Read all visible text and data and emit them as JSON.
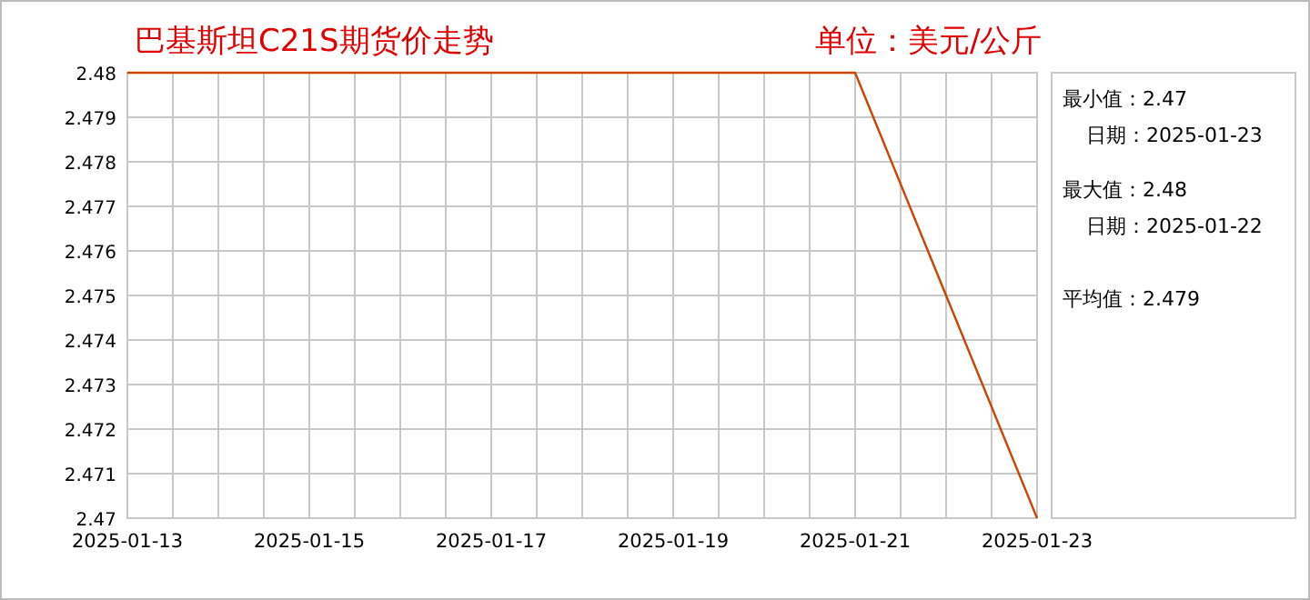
{
  "chart_data": {
    "type": "line",
    "title": "巴基斯坦C21S期货价走势",
    "subtitle": "单位：美元/公斤",
    "x": [
      "2025-01-13",
      "2025-01-14",
      "2025-01-15",
      "2025-01-16",
      "2025-01-17",
      "2025-01-20",
      "2025-01-21",
      "2025-01-23"
    ],
    "series": [
      {
        "color": "#cc4400",
        "values": [
          2.48,
          2.48,
          2.48,
          2.48,
          2.48,
          2.48,
          2.48,
          2.47
        ]
      }
    ],
    "xlim": [
      "2025-01-13",
      "2025-01-23"
    ],
    "xticks": [
      {
        "value": "2025-01-13",
        "label": "2025-01-13"
      },
      {
        "value": "2025-01-13T12:00",
        "label": null
      },
      {
        "value": "2025-01-14",
        "label": null
      },
      {
        "value": "2025-01-14T12:00",
        "label": null
      },
      {
        "value": "2025-01-15",
        "label": "2025-01-15"
      },
      {
        "value": "2025-01-15T12:00",
        "label": null
      },
      {
        "value": "2025-01-16",
        "label": null
      },
      {
        "value": "2025-01-16T12:00",
        "label": null
      },
      {
        "value": "2025-01-17",
        "label": "2025-01-17"
      },
      {
        "value": "2025-01-17T12:00",
        "label": null
      },
      {
        "value": "2025-01-18",
        "label": null
      },
      {
        "value": "2025-01-18T12:00",
        "label": null
      },
      {
        "value": "2025-01-19",
        "label": "2025-01-19"
      },
      {
        "value": "2025-01-19T12:00",
        "label": null
      },
      {
        "value": "2025-01-20",
        "label": null
      },
      {
        "value": "2025-01-20T12:00",
        "label": null
      },
      {
        "value": "2025-01-21",
        "label": "2025-01-21"
      },
      {
        "value": "2025-01-21T12:00",
        "label": null
      },
      {
        "value": "2025-01-22",
        "label": null
      },
      {
        "value": "2025-01-22T12:00",
        "label": null
      },
      {
        "value": "2025-01-23",
        "label": "2025-01-23"
      }
    ],
    "ylim": [
      2.47,
      2.48
    ],
    "yticks": [
      2.47,
      2.471,
      2.472,
      2.473,
      2.474,
      2.475,
      2.476,
      2.477,
      2.478,
      2.479,
      2.48
    ],
    "grid": true,
    "marker": "none",
    "line_style": "solid",
    "annotations": [
      "最小值：2.47",
      "日期：2025-01-23",
      "最大值：2.48",
      "日期：2025-01-22",
      "平均值：2.479"
    ]
  }
}
